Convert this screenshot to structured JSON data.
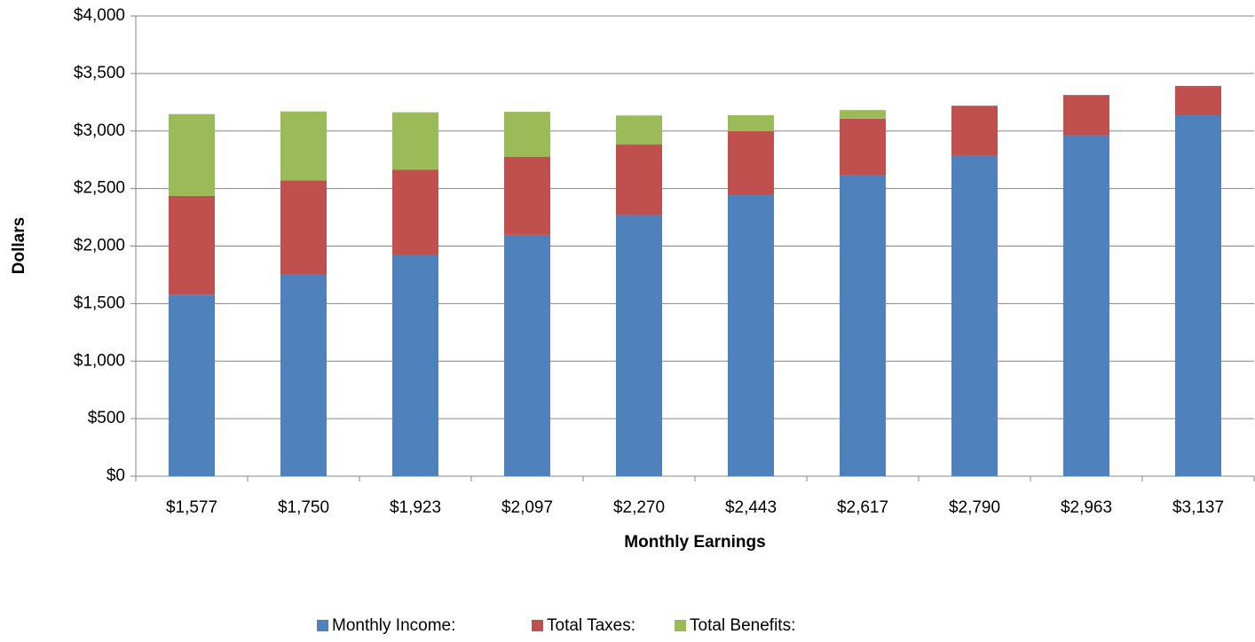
{
  "chart_data": {
    "type": "bar",
    "stacked": true,
    "x_label": "Monthly Earnings",
    "y_label": "Dollars",
    "categories": [
      "$1,577",
      "$1,750",
      "$1,923",
      "$2,097",
      "$2,270",
      "$2,443",
      "$2,617",
      "$2,790",
      "$2,963",
      "$3,137"
    ],
    "series": [
      {
        "name": "Monthly Income:",
        "color": "#4f81bd",
        "values": [
          1577,
          1750,
          1923,
          2097,
          2270,
          2443,
          2617,
          2790,
          2963,
          3137
        ]
      },
      {
        "name": "Total Taxes:",
        "color": "#c0504d",
        "values": [
          860,
          820,
          740,
          680,
          615,
          555,
          490,
          430,
          350,
          255
        ]
      },
      {
        "name": "Total Benefits:",
        "color": "#9bbb59",
        "values": [
          710,
          600,
          500,
          390,
          250,
          140,
          75,
          0,
          0,
          0
        ]
      }
    ],
    "ylim": [
      0,
      4000
    ],
    "yticks": [
      {
        "value": 0,
        "label": "$0"
      },
      {
        "value": 500,
        "label": "$500"
      },
      {
        "value": 1000,
        "label": "$1,000"
      },
      {
        "value": 1500,
        "label": "$1,500"
      },
      {
        "value": 2000,
        "label": "$2,000"
      },
      {
        "value": 2500,
        "label": "$2,500"
      },
      {
        "value": 3000,
        "label": "$3,000"
      },
      {
        "value": 3500,
        "label": "$3,500"
      },
      {
        "value": 4000,
        "label": "$4,000"
      }
    ],
    "grid": true,
    "legend": "bottom"
  }
}
